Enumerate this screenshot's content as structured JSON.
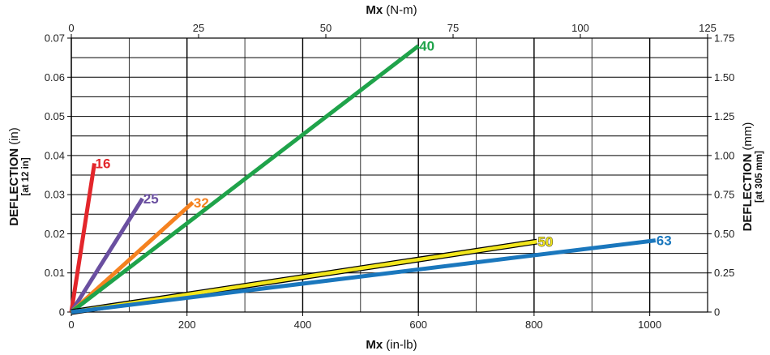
{
  "chart_data": {
    "type": "line",
    "title": "",
    "x_bottom": {
      "label_bold": "Mx",
      "label_unit": "(in-lb)",
      "range": [
        0,
        1100
      ],
      "ticks": [
        0,
        200,
        400,
        600,
        800,
        1000
      ],
      "tick_labels": [
        "0",
        "200",
        "400",
        "600",
        "800",
        "1000"
      ]
    },
    "x_top": {
      "label_bold": "Mx",
      "label_unit": "(N-m)",
      "range": [
        0,
        125
      ],
      "ticks": [
        0,
        25,
        50,
        75,
        100,
        125
      ],
      "tick_labels": [
        "0",
        "25",
        "50",
        "75",
        "100",
        "125"
      ]
    },
    "y_left": {
      "label_bold": "DEFLECTION",
      "label_unit": "(in)",
      "sublabel": "[at 12 in]",
      "range": [
        0,
        0.07
      ],
      "ticks": [
        0,
        0.01,
        0.02,
        0.03,
        0.04,
        0.05,
        0.06,
        0.07
      ],
      "tick_labels": [
        "0",
        "0.01",
        "0.02",
        "0.03",
        "0.04",
        "0.05",
        "0.06",
        "0.07"
      ]
    },
    "y_right": {
      "label_bold": "DEFLECTION",
      "label_unit": "(mm)",
      "sublabel": "[at 305 mm]",
      "range": [
        0,
        1.75
      ],
      "ticks": [
        0,
        0.25,
        0.5,
        0.75,
        1.0,
        1.25,
        1.5,
        1.75
      ],
      "tick_labels": [
        "0",
        "0.25",
        "0.50",
        "0.75",
        "1.00",
        "1.25",
        "1.50",
        "1.75"
      ]
    },
    "grid": true,
    "series": [
      {
        "name": "16",
        "color": "#e3262b",
        "x": [
          0,
          40
        ],
        "y": [
          0,
          0.038
        ]
      },
      {
        "name": "25",
        "color": "#6a4fa0",
        "x": [
          0,
          123
        ],
        "y": [
          0,
          0.029
        ]
      },
      {
        "name": "32",
        "color": "#f58220",
        "x": [
          0,
          210
        ],
        "y": [
          0,
          0.028
        ]
      },
      {
        "name": "40",
        "color": "#1fa34a",
        "x": [
          0,
          600
        ],
        "y": [
          0,
          0.068
        ]
      },
      {
        "name": "50",
        "color": "#f2e61c",
        "x": [
          0,
          805
        ],
        "y": [
          0,
          0.018
        ]
      },
      {
        "name": "63",
        "color": "#1a77bd",
        "x": [
          0,
          1010
        ],
        "y": [
          0,
          0.0183
        ]
      }
    ]
  }
}
